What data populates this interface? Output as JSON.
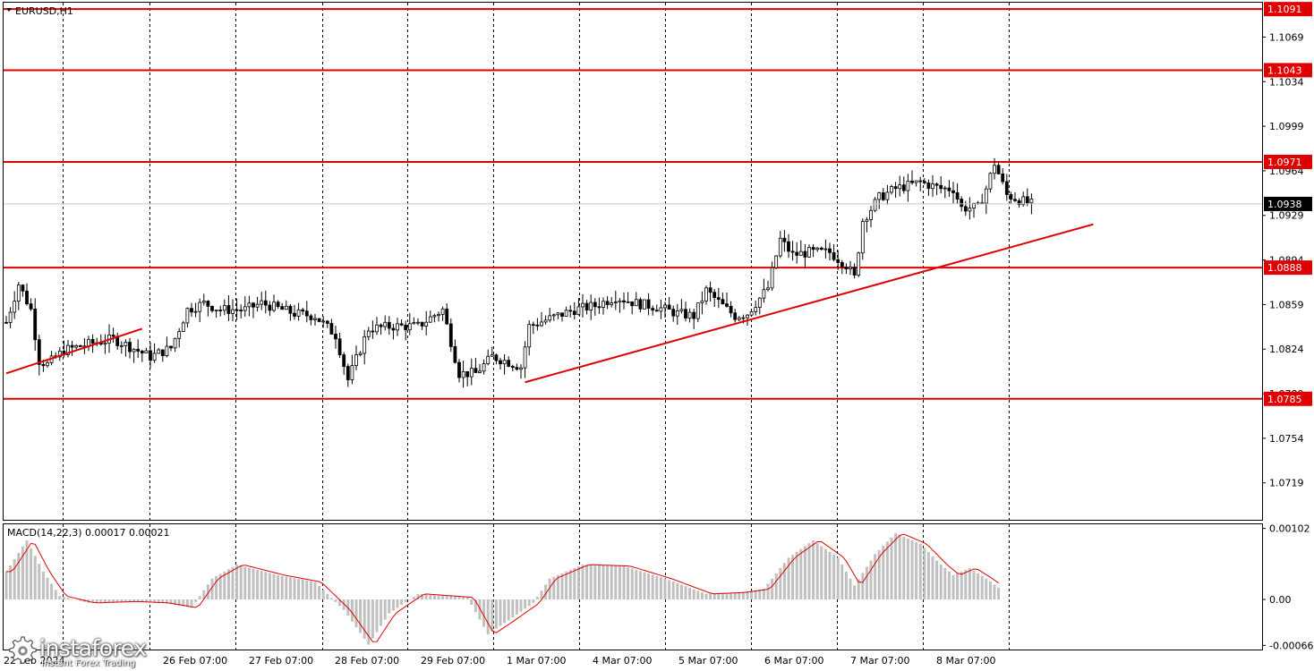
{
  "symbol_label": "EURUSD,H1",
  "indicator_label": "MACD(14,22,3) 0.00017 0.00021",
  "logo": {
    "name": "instaforex",
    "tagline": "Instant Forex Trading"
  },
  "colors": {
    "levels": "#e00000",
    "candles": "#000000",
    "histogram": "#c0c0c0",
    "signal": "#e00000",
    "grid": "#000000"
  },
  "chart_data": [
    {
      "type": "candlestick",
      "timeframe": "H1",
      "y_range": [
        1.069,
        1.1096
      ],
      "y_tick_labels": [
        "1.1069",
        "1.1034",
        "1.0999",
        "1.0964",
        "1.0929",
        "1.0894",
        "1.0859",
        "1.0824",
        "1.0789",
        "1.0754",
        "1.0719"
      ],
      "x_tick_labels": [
        "22 Feb 2024",
        "26 Feb 07:00",
        "27 Feb 07:00",
        "28 Feb 07:00",
        "29 Feb 07:00",
        "1 Mar 07:00",
        "4 Mar 07:00",
        "5 Mar 07:00",
        "6 Mar 07:00",
        "7 Mar 07:00",
        "8 Mar 07:00"
      ],
      "current_price": {
        "label": "1.0938",
        "value": 1.0938
      },
      "horizontal_levels": [
        {
          "label": "1.1091",
          "value": 1.1091
        },
        {
          "label": "1.1043",
          "value": 1.1043
        },
        {
          "label": "1.0971",
          "value": 1.0971
        },
        {
          "label": "1.0888",
          "value": 1.0888
        },
        {
          "label": "1.0785",
          "value": 1.0785
        }
      ],
      "trendlines": [
        {
          "from": {
            "bar": 0,
            "price": 1.0805
          },
          "to": {
            "bar": 33,
            "price": 1.084
          }
        },
        {
          "from": {
            "bar": 126,
            "price": 1.0798
          },
          "to": {
            "bar": 264,
            "price": 1.0922
          }
        }
      ],
      "price_path": [
        [
          0,
          1.0845
        ],
        [
          3,
          1.0875
        ],
        [
          6,
          1.0855
        ],
        [
          8,
          1.0815
        ],
        [
          10,
          1.0812
        ],
        [
          14,
          1.0823
        ],
        [
          20,
          1.0828
        ],
        [
          26,
          1.0832
        ],
        [
          30,
          1.0826
        ],
        [
          35,
          1.0818
        ],
        [
          40,
          1.0825
        ],
        [
          44,
          1.0855
        ],
        [
          48,
          1.086
        ],
        [
          52,
          1.0855
        ],
        [
          58,
          1.0855
        ],
        [
          62,
          1.086
        ],
        [
          66,
          1.0856
        ],
        [
          70,
          1.0852
        ],
        [
          75,
          1.085
        ],
        [
          80,
          1.0835
        ],
        [
          83,
          1.08
        ],
        [
          88,
          1.084
        ],
        [
          94,
          1.0842
        ],
        [
          100,
          1.0842
        ],
        [
          106,
          1.0855
        ],
        [
          110,
          1.0805
        ],
        [
          114,
          1.0805
        ],
        [
          118,
          1.0818
        ],
        [
          121,
          1.0815
        ],
        [
          125,
          1.081
        ],
        [
          127,
          1.0842
        ],
        [
          132,
          1.0848
        ],
        [
          138,
          1.0855
        ],
        [
          143,
          1.0858
        ],
        [
          148,
          1.0865
        ],
        [
          153,
          1.086
        ],
        [
          158,
          1.0857
        ],
        [
          163,
          1.0852
        ],
        [
          167,
          1.085
        ],
        [
          170,
          1.087
        ],
        [
          174,
          1.0858
        ],
        [
          177,
          1.085
        ],
        [
          180,
          1.0852
        ],
        [
          185,
          1.0872
        ],
        [
          188,
          1.091
        ],
        [
          191,
          1.0898
        ],
        [
          195,
          1.09
        ],
        [
          200,
          1.09
        ],
        [
          204,
          1.089
        ],
        [
          206,
          1.088
        ],
        [
          208,
          1.0925
        ],
        [
          212,
          1.0943
        ],
        [
          216,
          1.095
        ],
        [
          222,
          1.0955
        ],
        [
          227,
          1.095
        ],
        [
          230,
          1.095
        ],
        [
          232,
          1.0935
        ],
        [
          236,
          1.0935
        ],
        [
          238,
          1.095
        ],
        [
          240,
          1.097
        ],
        [
          243,
          1.0945
        ],
        [
          247,
          1.094
        ],
        [
          249,
          1.0938
        ]
      ]
    },
    {
      "type": "bar",
      "name": "MACD(14,22,3)",
      "values_label": "0.00017 0.00021",
      "macd": 0.00017,
      "signal": 0.00021,
      "y_range": [
        -0.00072,
        0.00108
      ],
      "y_tick_labels": [
        "0.00102",
        "0.00",
        "-0.00066"
      ],
      "path": [
        [
          0,
          0.0004
        ],
        [
          5,
          0.00085
        ],
        [
          9,
          0.0004
        ],
        [
          13,
          5e-05
        ],
        [
          20,
          -5e-05
        ],
        [
          30,
          -3e-05
        ],
        [
          38,
          -5e-05
        ],
        [
          45,
          -0.00012
        ],
        [
          50,
          0.0003
        ],
        [
          56,
          0.0005
        ],
        [
          66,
          0.00035
        ],
        [
          75,
          0.00025
        ],
        [
          82,
          -0.00015
        ],
        [
          88,
          -0.00065
        ],
        [
          93,
          -0.0002
        ],
        [
          100,
          8e-05
        ],
        [
          112,
          3e-05
        ],
        [
          117,
          -0.0005
        ],
        [
          122,
          -0.0003
        ],
        [
          128,
          -5e-05
        ],
        [
          132,
          0.0003
        ],
        [
          140,
          0.0005
        ],
        [
          150,
          0.00048
        ],
        [
          160,
          0.0003
        ],
        [
          170,
          8e-05
        ],
        [
          178,
          0.0001
        ],
        [
          184,
          0.00015
        ],
        [
          190,
          0.0006
        ],
        [
          196,
          0.00085
        ],
        [
          202,
          0.0006
        ],
        [
          206,
          0.0002
        ],
        [
          211,
          0.00065
        ],
        [
          216,
          0.00095
        ],
        [
          222,
          0.0008
        ],
        [
          227,
          0.0005
        ],
        [
          230,
          0.00035
        ],
        [
          234,
          0.00045
        ],
        [
          238,
          0.0003
        ],
        [
          241,
          0.00017
        ]
      ]
    }
  ]
}
